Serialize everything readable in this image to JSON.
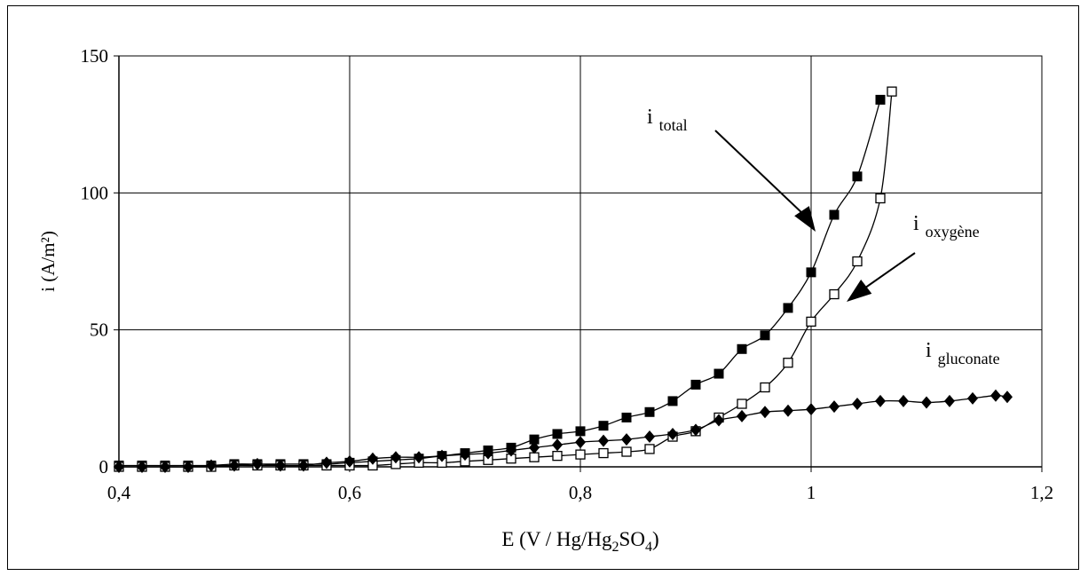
{
  "chart_data": {
    "type": "scatter",
    "title": "",
    "xlabel_parts": [
      {
        "text": "E (V / Hg/Hg",
        "sub": false
      },
      {
        "text": "2",
        "sub": true
      },
      {
        "text": "SO",
        "sub": false
      },
      {
        "text": "4",
        "sub": true
      },
      {
        "text": ")",
        "sub": false
      }
    ],
    "ylabel": "i (A/m²)",
    "xlim": [
      0.4,
      1.2
    ],
    "ylim": [
      0,
      150
    ],
    "grid": true,
    "x_tick_values": [
      0.4,
      0.6,
      0.8,
      1.0,
      1.2
    ],
    "x_tick_labels": [
      "0,4",
      "0,6",
      "0,8",
      "1",
      "1,2"
    ],
    "y_tick_values": [
      0,
      50,
      100,
      150
    ],
    "y_tick_labels": [
      "0",
      "50",
      "100",
      "150"
    ],
    "series": [
      {
        "name": "i total",
        "label_main": "i",
        "label_sub": "total",
        "marker": "filled-square",
        "x": [
          0.4,
          0.42,
          0.44,
          0.46,
          0.48,
          0.5,
          0.52,
          0.54,
          0.56,
          0.58,
          0.6,
          0.62,
          0.64,
          0.66,
          0.68,
          0.7,
          0.72,
          0.74,
          0.76,
          0.78,
          0.8,
          0.82,
          0.84,
          0.86,
          0.88,
          0.9,
          0.92,
          0.94,
          0.96,
          0.98,
          1.0,
          1.02,
          1.04,
          1.06
        ],
        "y": [
          0.5,
          0.5,
          0.5,
          0.5,
          0.5,
          1,
          1,
          1,
          1,
          1,
          1.5,
          2,
          2.5,
          3,
          4,
          5,
          6,
          7,
          10,
          12,
          13,
          15,
          18,
          20,
          24,
          30,
          34,
          43,
          48,
          58,
          71,
          92,
          106,
          134
        ]
      },
      {
        "name": "i oxygène",
        "label_main": "i",
        "label_sub": "oxygène",
        "marker": "open-square",
        "x": [
          0.4,
          0.42,
          0.44,
          0.46,
          0.48,
          0.5,
          0.52,
          0.54,
          0.56,
          0.58,
          0.6,
          0.62,
          0.64,
          0.66,
          0.68,
          0.7,
          0.72,
          0.74,
          0.76,
          0.78,
          0.8,
          0.82,
          0.84,
          0.86,
          0.88,
          0.9,
          0.92,
          0.94,
          0.96,
          0.98,
          1.0,
          1.02,
          1.04,
          1.06,
          1.07
        ],
        "y": [
          0,
          0,
          0,
          0,
          0,
          0.5,
          0.5,
          0.5,
          0.5,
          0.5,
          0.5,
          0.5,
          1,
          1.5,
          1.5,
          2,
          2.5,
          3,
          3.5,
          4,
          4.5,
          5,
          5.5,
          6.5,
          11,
          13,
          18,
          23,
          29,
          38,
          53,
          63,
          75,
          98,
          137
        ]
      },
      {
        "name": "i gluconate",
        "label_main": "i",
        "label_sub": "gluconate",
        "marker": "filled-diamond",
        "x": [
          0.4,
          0.42,
          0.44,
          0.46,
          0.48,
          0.5,
          0.52,
          0.54,
          0.56,
          0.58,
          0.6,
          0.62,
          0.64,
          0.66,
          0.68,
          0.7,
          0.72,
          0.74,
          0.76,
          0.78,
          0.8,
          0.82,
          0.84,
          0.86,
          0.88,
          0.9,
          0.92,
          0.94,
          0.96,
          0.98,
          1.0,
          1.02,
          1.04,
          1.06,
          1.08,
          1.1,
          1.12,
          1.14,
          1.16,
          1.17
        ],
        "y": [
          0,
          0,
          0,
          0,
          0.5,
          0.5,
          1,
          0.5,
          0.5,
          1.5,
          2,
          3,
          3.5,
          3.5,
          4,
          4.5,
          5,
          6,
          7,
          8,
          9,
          9.5,
          10,
          11,
          12,
          13.5,
          17,
          18.5,
          20,
          20.5,
          21,
          22,
          23,
          24,
          24,
          23.5,
          24,
          25,
          26,
          25.5
        ]
      }
    ]
  }
}
